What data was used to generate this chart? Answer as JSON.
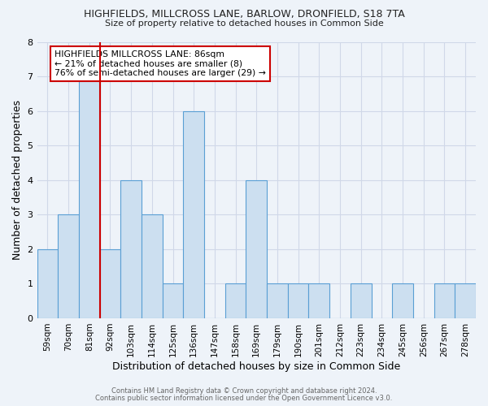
{
  "title1": "HIGHFIELDS, MILLCROSS LANE, BARLOW, DRONFIELD, S18 7TA",
  "title2": "Size of property relative to detached houses in Common Side",
  "xlabel": "Distribution of detached houses by size in Common Side",
  "ylabel": "Number of detached properties",
  "bins": [
    "59sqm",
    "70sqm",
    "81sqm",
    "92sqm",
    "103sqm",
    "114sqm",
    "125sqm",
    "136sqm",
    "147sqm",
    "158sqm",
    "169sqm",
    "179sqm",
    "190sqm",
    "201sqm",
    "212sqm",
    "223sqm",
    "234sqm",
    "245sqm",
    "256sqm",
    "267sqm",
    "278sqm"
  ],
  "counts": [
    2,
    3,
    7,
    2,
    4,
    3,
    1,
    6,
    0,
    1,
    4,
    1,
    1,
    1,
    0,
    1,
    0,
    1,
    0,
    1,
    1
  ],
  "red_line_index": 2,
  "annotation_title": "HIGHFIELDS MILLCROSS LANE: 86sqm",
  "annotation_line1": "← 21% of detached houses are smaller (8)",
  "annotation_line2": "76% of semi-detached houses are larger (29) →",
  "bar_color": "#ccdff0",
  "bar_edge_color": "#5a9fd4",
  "red_line_color": "#cc0000",
  "grid_color": "#d0d8e8",
  "background_color": "#eef3f9",
  "annotation_box_color": "#ffffff",
  "annotation_box_edge": "#cc0000",
  "footer1": "Contains HM Land Registry data © Crown copyright and database right 2024.",
  "footer2": "Contains public sector information licensed under the Open Government Licence v3.0.",
  "ylim": [
    0,
    8
  ],
  "yticks": [
    0,
    1,
    2,
    3,
    4,
    5,
    6,
    7,
    8
  ]
}
